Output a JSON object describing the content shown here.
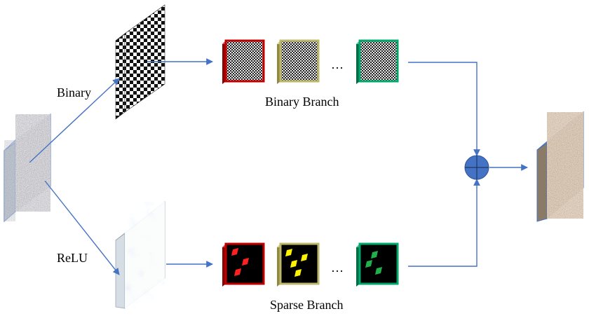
{
  "labels": {
    "binary": "Binary",
    "relu": "ReLU",
    "binary_branch": "Binary Branch",
    "sparse_branch": "Sparse Branch",
    "ellipsis_top": "…",
    "ellipsis_bottom": "…"
  },
  "colors": {
    "arrow": "#4472C4",
    "sum_node": "#4472C4",
    "filter_red": "#C00000",
    "filter_yellow": "#BDB76B",
    "filter_green": "#00A86B",
    "sparse_red_dot": "#FF2020",
    "sparse_yellow_dot": "#FFF200",
    "sparse_green_dot": "#22B04A"
  },
  "icons": [
    "plus-circle-icon",
    "arrow-icon"
  ]
}
